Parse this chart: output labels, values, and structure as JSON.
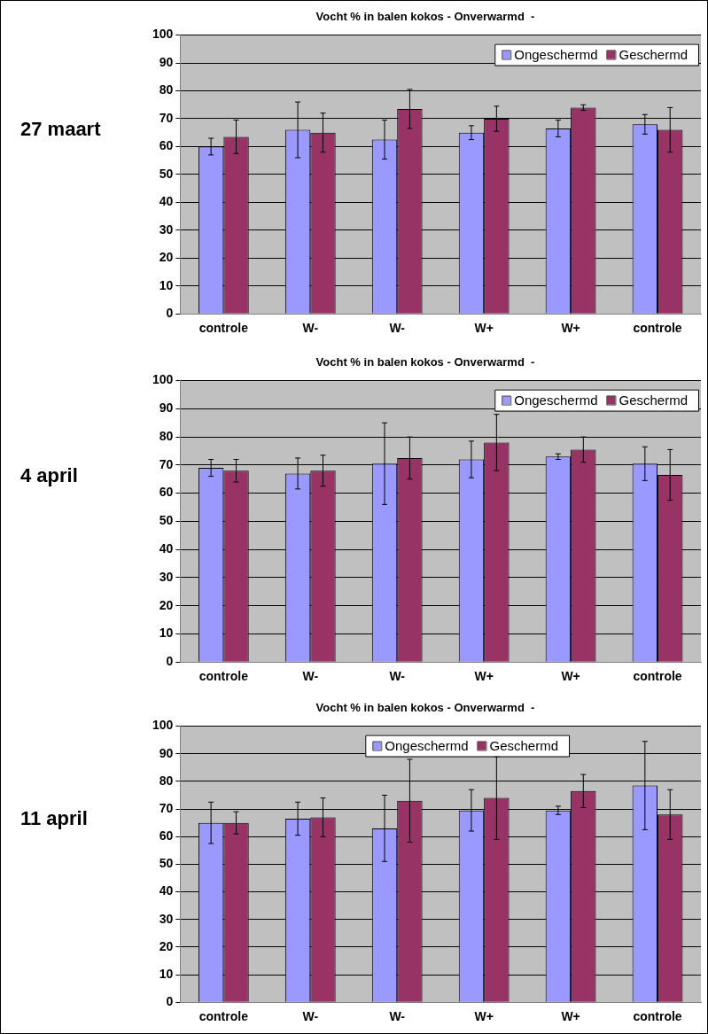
{
  "chart_data": [
    {
      "type": "bar",
      "title": "Vocht % in balen kokos - Onverwarmd  -",
      "annotations": [
        "27 maart"
      ],
      "categories": [
        "controle",
        "W-",
        "W-",
        "W+",
        "W+",
        "controle"
      ],
      "series": [
        {
          "name": "Ongeschermd",
          "color": "#9999ff",
          "values": [
            60,
            66,
            62.5,
            65,
            66.5,
            68
          ],
          "errors": [
            3,
            10,
            7,
            2.5,
            3,
            3.5
          ]
        },
        {
          "name": "Geschermd",
          "color": "#993366",
          "values": [
            63.5,
            65,
            73.5,
            70,
            74,
            66
          ],
          "errors": [
            6,
            7,
            7,
            4.5,
            1,
            8
          ]
        }
      ],
      "ylim": [
        0,
        100
      ],
      "yticks": [
        0,
        10,
        20,
        30,
        40,
        50,
        60,
        70,
        80,
        90,
        100
      ],
      "grid": "y",
      "legend": "top right"
    },
    {
      "type": "bar",
      "title": "Vocht % in balen kokos - Onverwarmd  -",
      "annotations": [
        "4 april"
      ],
      "categories": [
        "controle",
        "W-",
        "W-",
        "W+",
        "W+",
        "controle"
      ],
      "series": [
        {
          "name": "Ongeschermd",
          "color": "#9999ff",
          "values": [
            69,
            67,
            70.5,
            72,
            73,
            70.5
          ],
          "errors": [
            3,
            5.5,
            14.5,
            6.5,
            1,
            6
          ]
        },
        {
          "name": "Geschermd",
          "color": "#993366",
          "values": [
            68,
            68,
            72.5,
            78,
            75.5,
            66.5
          ],
          "errors": [
            4,
            5.5,
            7.5,
            10,
            4.5,
            9
          ]
        }
      ],
      "ylim": [
        0,
        100
      ],
      "yticks": [
        0,
        10,
        20,
        30,
        40,
        50,
        60,
        70,
        80,
        90,
        100
      ],
      "grid": "y",
      "legend": "top right"
    },
    {
      "type": "bar",
      "title": "Vocht % in balen kokos - Onverwarmd  -",
      "annotations": [
        "11 april"
      ],
      "categories": [
        "controle",
        "W-",
        "W-",
        "W+",
        "W+",
        "controle"
      ],
      "series": [
        {
          "name": "Ongeschermd",
          "color": "#9999ff",
          "values": [
            65,
            66.5,
            63,
            69.5,
            69.5,
            78.5
          ],
          "errors": [
            7.5,
            6,
            12,
            7.5,
            1.5,
            16
          ]
        },
        {
          "name": "Geschermd",
          "color": "#993366",
          "values": [
            65,
            67,
            73,
            74,
            76.5,
            68
          ],
          "errors": [
            4,
            7,
            15,
            15,
            6,
            9
          ]
        }
      ],
      "ylim": [
        0,
        100
      ],
      "yticks": [
        0,
        10,
        20,
        30,
        40,
        50,
        60,
        70,
        80,
        90,
        100
      ],
      "grid": "y",
      "legend": "top"
    }
  ]
}
